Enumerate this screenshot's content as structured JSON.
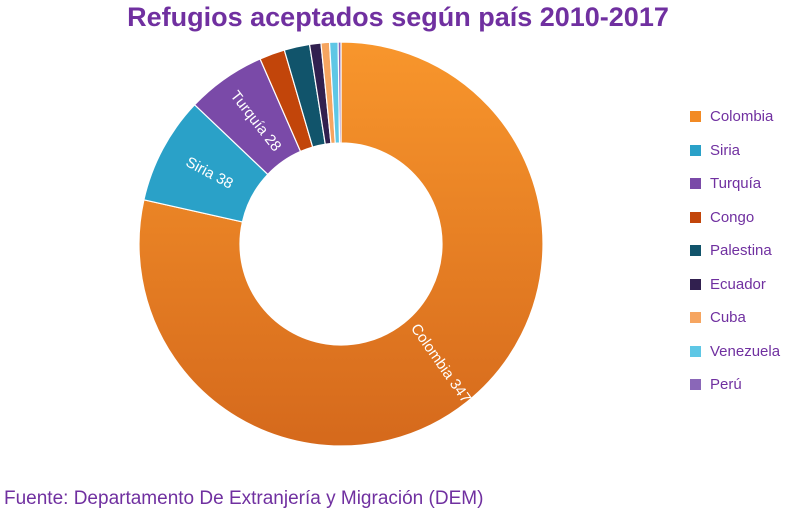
{
  "title": "Refugios aceptados según país 2010-2017",
  "source": "Fuente: Departamento De Extranjería y Migración (DEM)",
  "chart_data": {
    "type": "pie",
    "title": "Refugios aceptados según país 2010-2017",
    "legend_position": "right",
    "categories": [
      "Colombia",
      "Siria",
      "Turquía",
      "Congo",
      "Palestina",
      "Ecuador",
      "Cuba",
      "Venezuela",
      "Perú"
    ],
    "values": [
      347,
      38,
      28,
      9,
      9,
      4,
      3,
      3,
      1
    ],
    "colors": [
      "#f28a24",
      "#2aa1c8",
      "#7a4aa8",
      "#c2450a",
      "#11546b",
      "#31204f",
      "#f6a560",
      "#5ec7e5",
      "#8a67b8"
    ],
    "data_labels": [
      {
        "text": "Colombia 347",
        "index": 0
      },
      {
        "text": "Siria 38",
        "index": 1
      },
      {
        "text": "Turquía 28",
        "index": 2
      }
    ]
  }
}
